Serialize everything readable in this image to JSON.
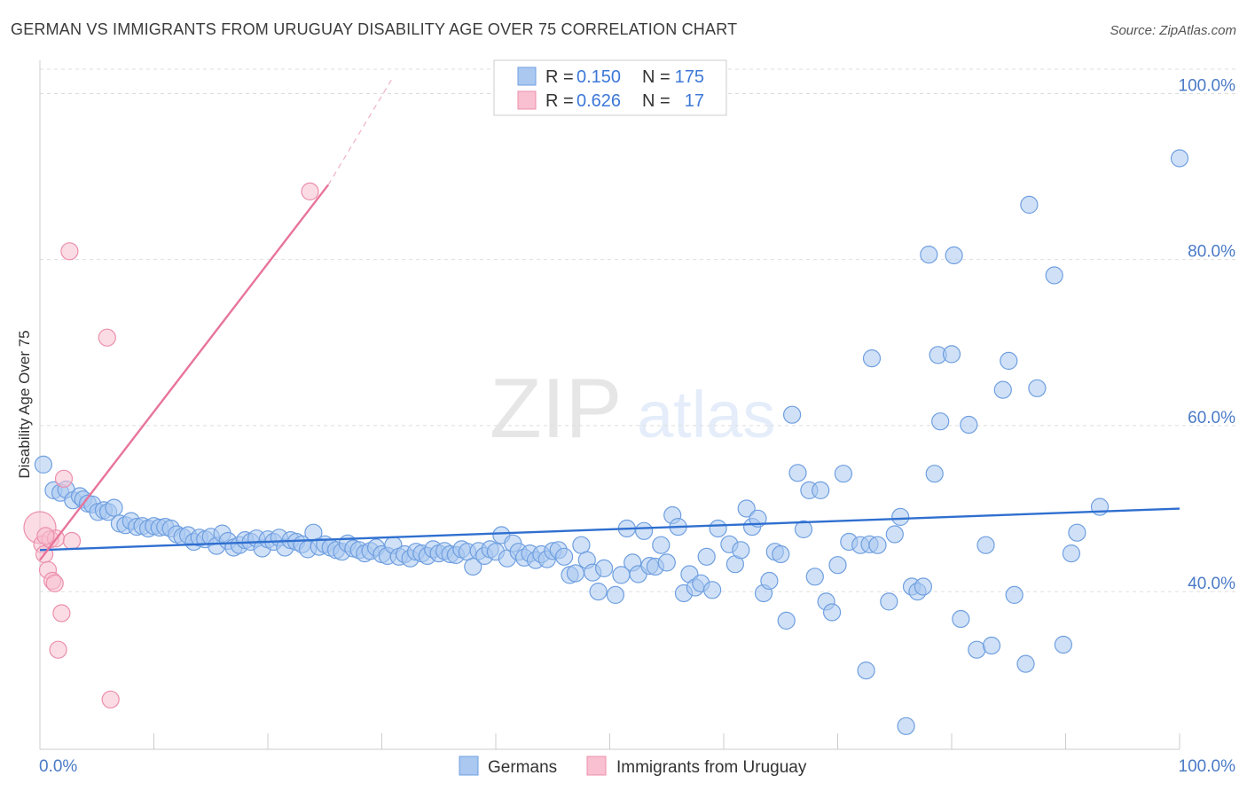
{
  "header": {
    "title": "GERMAN VS IMMIGRANTS FROM URUGUAY DISABILITY AGE OVER 75 CORRELATION CHART",
    "source": "Source: ZipAtlas.com"
  },
  "watermark": {
    "zip": "ZIP",
    "atlas": "atlas"
  },
  "legend": {
    "r_label": "R =",
    "n_label": "N =",
    "series": [
      {
        "name": "Germans",
        "r": "0.150",
        "n": "175",
        "fill": "#aac8f0",
        "stroke": "#6f9fe0"
      },
      {
        "name": "Immigrants from Uruguay",
        "r": "0.626",
        "n": "17",
        "fill": "#f8c0d0",
        "stroke": "#ec8fac"
      }
    ]
  },
  "colors": {
    "blue_line": "#2f6fd0",
    "pink_line": "#e8749a",
    "grid": "#dddddd",
    "axis": "#cccccc",
    "tick_text": "#4a7ac7"
  },
  "chart_data": {
    "type": "scatter",
    "title": "GERMAN VS IMMIGRANTS FROM URUGUAY DISABILITY AGE OVER 75 CORRELATION CHART",
    "xlabel": "",
    "ylabel": "Disability Age Over 75",
    "xlim": [
      0,
      100
    ],
    "ylim": [
      21,
      104
    ],
    "x_tick_labels": [
      "0.0%",
      "100.0%"
    ],
    "y_ticks": [
      40,
      60,
      80,
      100
    ],
    "y_tick_labels": [
      "40.0%",
      "60.0%",
      "80.0%",
      "100.0%"
    ],
    "grid": true,
    "series": [
      {
        "name": "Germans",
        "r": 0.15,
        "n": 175,
        "trend": {
          "x": [
            0,
            100
          ],
          "y": [
            45.0,
            50.0
          ],
          "style": "solid"
        },
        "points": [
          [
            0.3,
            55.3
          ],
          [
            1.2,
            52.2
          ],
          [
            1.8,
            51.9
          ],
          [
            2.3,
            52.3
          ],
          [
            2.9,
            51.0
          ],
          [
            3.5,
            51.5
          ],
          [
            3.8,
            51.1
          ],
          [
            4.2,
            50.6
          ],
          [
            4.6,
            50.5
          ],
          [
            5.1,
            49.6
          ],
          [
            5.6,
            49.8
          ],
          [
            6.0,
            49.6
          ],
          [
            6.5,
            50.1
          ],
          [
            7.0,
            48.2
          ],
          [
            7.5,
            48.0
          ],
          [
            8.0,
            48.5
          ],
          [
            8.5,
            47.8
          ],
          [
            9.0,
            47.9
          ],
          [
            9.5,
            47.6
          ],
          [
            10.0,
            47.9
          ],
          [
            10.5,
            47.7
          ],
          [
            11.0,
            47.8
          ],
          [
            11.5,
            47.6
          ],
          [
            12.0,
            46.9
          ],
          [
            12.5,
            46.6
          ],
          [
            13.0,
            46.8
          ],
          [
            13.5,
            46.0
          ],
          [
            14.0,
            46.5
          ],
          [
            14.5,
            46.3
          ],
          [
            15.0,
            46.6
          ],
          [
            15.5,
            45.5
          ],
          [
            16.0,
            47.0
          ],
          [
            16.5,
            46.1
          ],
          [
            17.0,
            45.3
          ],
          [
            17.5,
            45.6
          ],
          [
            18.0,
            46.2
          ],
          [
            18.5,
            46.0
          ],
          [
            19.0,
            46.4
          ],
          [
            19.5,
            45.2
          ],
          [
            20.0,
            46.3
          ],
          [
            20.5,
            46.0
          ],
          [
            21.0,
            46.5
          ],
          [
            21.5,
            45.3
          ],
          [
            22.0,
            46.2
          ],
          [
            22.5,
            46.0
          ],
          [
            23.0,
            45.7
          ],
          [
            23.5,
            45.1
          ],
          [
            24.0,
            47.1
          ],
          [
            24.5,
            45.4
          ],
          [
            25.0,
            45.7
          ],
          [
            25.5,
            45.3
          ],
          [
            26.0,
            45.0
          ],
          [
            26.5,
            44.8
          ],
          [
            27.0,
            45.8
          ],
          [
            27.5,
            45.2
          ],
          [
            28.0,
            45.0
          ],
          [
            28.5,
            44.6
          ],
          [
            29.0,
            44.9
          ],
          [
            29.5,
            45.3
          ],
          [
            30.0,
            44.5
          ],
          [
            30.5,
            44.3
          ],
          [
            31.0,
            45.6
          ],
          [
            31.5,
            44.2
          ],
          [
            32.0,
            44.5
          ],
          [
            32.5,
            44.0
          ],
          [
            33.0,
            44.8
          ],
          [
            33.5,
            44.6
          ],
          [
            34.0,
            44.3
          ],
          [
            34.5,
            45.1
          ],
          [
            35.0,
            44.6
          ],
          [
            35.5,
            44.9
          ],
          [
            36.0,
            44.5
          ],
          [
            36.5,
            44.4
          ],
          [
            37.0,
            45.1
          ],
          [
            37.5,
            44.8
          ],
          [
            38.0,
            43.0
          ],
          [
            38.5,
            44.9
          ],
          [
            39.0,
            44.3
          ],
          [
            39.5,
            45.1
          ],
          [
            40.0,
            44.8
          ],
          [
            40.5,
            46.8
          ],
          [
            41.0,
            44.0
          ],
          [
            41.5,
            45.8
          ],
          [
            42.0,
            44.8
          ],
          [
            42.5,
            44.1
          ],
          [
            43.0,
            44.6
          ],
          [
            43.5,
            43.8
          ],
          [
            44.0,
            44.5
          ],
          [
            44.5,
            43.9
          ],
          [
            45.0,
            44.9
          ],
          [
            45.5,
            45.0
          ],
          [
            46.0,
            44.2
          ],
          [
            46.5,
            42.0
          ],
          [
            47.0,
            42.2
          ],
          [
            47.5,
            45.6
          ],
          [
            48.0,
            43.8
          ],
          [
            48.5,
            42.3
          ],
          [
            49.0,
            40.0
          ],
          [
            49.5,
            42.8
          ],
          [
            50.5,
            39.6
          ],
          [
            51.0,
            42.0
          ],
          [
            51.5,
            47.6
          ],
          [
            52.0,
            43.5
          ],
          [
            52.5,
            42.1
          ],
          [
            53.0,
            47.3
          ],
          [
            53.5,
            43.1
          ],
          [
            54.0,
            43.0
          ],
          [
            54.5,
            45.6
          ],
          [
            55.0,
            43.5
          ],
          [
            55.5,
            49.2
          ],
          [
            56.0,
            47.8
          ],
          [
            56.5,
            39.8
          ],
          [
            57.0,
            42.1
          ],
          [
            57.5,
            40.5
          ],
          [
            58.0,
            41.0
          ],
          [
            58.5,
            44.2
          ],
          [
            59.0,
            40.2
          ],
          [
            59.5,
            47.6
          ],
          [
            60.5,
            45.7
          ],
          [
            61.0,
            43.3
          ],
          [
            61.5,
            45.0
          ],
          [
            62.0,
            50.0
          ],
          [
            62.5,
            47.8
          ],
          [
            63.0,
            48.8
          ],
          [
            63.5,
            39.8
          ],
          [
            64.0,
            41.3
          ],
          [
            64.5,
            44.8
          ],
          [
            65.0,
            44.5
          ],
          [
            65.5,
            36.5
          ],
          [
            66.0,
            61.3
          ],
          [
            66.5,
            54.3
          ],
          [
            67.0,
            47.5
          ],
          [
            67.5,
            52.2
          ],
          [
            68.0,
            41.8
          ],
          [
            68.5,
            52.2
          ],
          [
            69.0,
            38.8
          ],
          [
            69.5,
            37.5
          ],
          [
            70.0,
            43.2
          ],
          [
            70.5,
            54.2
          ],
          [
            71.0,
            46.0
          ],
          [
            72.0,
            45.6
          ],
          [
            72.5,
            30.5
          ],
          [
            72.8,
            45.7
          ],
          [
            73.0,
            68.1
          ],
          [
            73.5,
            45.6
          ],
          [
            74.5,
            38.8
          ],
          [
            75.0,
            46.9
          ],
          [
            75.5,
            49.0
          ],
          [
            76.0,
            23.8
          ],
          [
            76.5,
            40.6
          ],
          [
            77.0,
            40.0
          ],
          [
            77.5,
            40.6
          ],
          [
            78.0,
            80.6
          ],
          [
            78.5,
            54.2
          ],
          [
            78.8,
            68.5
          ],
          [
            79.0,
            60.5
          ],
          [
            80.0,
            68.6
          ],
          [
            80.2,
            80.5
          ],
          [
            80.8,
            36.7
          ],
          [
            81.5,
            60.1
          ],
          [
            82.2,
            33.0
          ],
          [
            83.0,
            45.6
          ],
          [
            83.5,
            33.5
          ],
          [
            84.5,
            64.3
          ],
          [
            85.0,
            67.8
          ],
          [
            85.5,
            39.6
          ],
          [
            86.5,
            31.3
          ],
          [
            86.8,
            86.6
          ],
          [
            87.5,
            64.5
          ],
          [
            89.0,
            78.1
          ],
          [
            89.8,
            33.6
          ],
          [
            90.5,
            44.6
          ],
          [
            91.0,
            47.1
          ],
          [
            93.0,
            50.2
          ],
          [
            100.0,
            92.2
          ]
        ]
      },
      {
        "name": "Immigrants from Uruguay",
        "r": 0.626,
        "n": 17,
        "trend": {
          "x": [
            0,
            25.3
          ],
          "y": [
            43.8,
            89.0
          ],
          "style": "solid",
          "dashed_extension": {
            "x": [
              25.3,
              31.0
            ],
            "y": [
              89.0,
              102.0
            ]
          }
        },
        "points": [
          [
            0.0,
            47.7
          ],
          [
            0.2,
            45.7
          ],
          [
            0.4,
            44.5
          ],
          [
            0.7,
            42.6
          ],
          [
            0.9,
            46.3
          ],
          [
            1.1,
            41.3
          ],
          [
            1.4,
            46.4
          ],
          [
            1.6,
            33.0
          ],
          [
            1.9,
            37.4
          ],
          [
            2.1,
            53.6
          ],
          [
            2.6,
            81.0
          ],
          [
            2.8,
            46.1
          ],
          [
            5.9,
            70.6
          ],
          [
            6.2,
            27.0
          ],
          [
            23.7,
            88.2
          ],
          [
            1.3,
            41.0
          ],
          [
            0.5,
            46.7
          ]
        ]
      }
    ]
  }
}
